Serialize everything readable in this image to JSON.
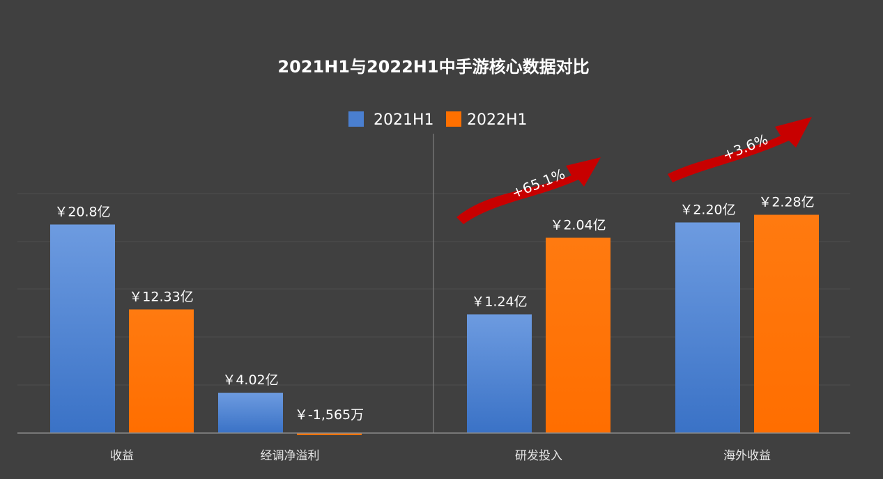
{
  "chart_data": {
    "type": "bar",
    "title": "2021H1与2022H1中手游核心数据对比",
    "categories": [
      "收益",
      "经调净溢利",
      "研发投入",
      "海外收益"
    ],
    "unit": "亿元",
    "series": [
      {
        "name": "2021H1",
        "color": "#4a7fd0",
        "values": [
          20.8,
          4.02,
          1.24,
          2.2
        ],
        "labels": [
          "￥20.8亿",
          "￥4.02亿",
          "￥1.24亿",
          "￥2.20亿"
        ]
      },
      {
        "name": "2022H1",
        "color": "#ff7000",
        "values": [
          12.33,
          -0.1565,
          2.04,
          2.28
        ],
        "labels": [
          "￥12.33亿",
          "￥-1,565万",
          "￥2.04亿",
          "￥2.28亿"
        ]
      }
    ],
    "annotations": [
      {
        "category": "研发投入",
        "text": "+65.1%",
        "color": "#cc0000"
      },
      {
        "category": "海外收益",
        "text": "+3.6%",
        "color": "#cc0000"
      }
    ],
    "legend": "top-center",
    "grid": true,
    "scale_note": "left two categories and right two categories use separate scales"
  }
}
